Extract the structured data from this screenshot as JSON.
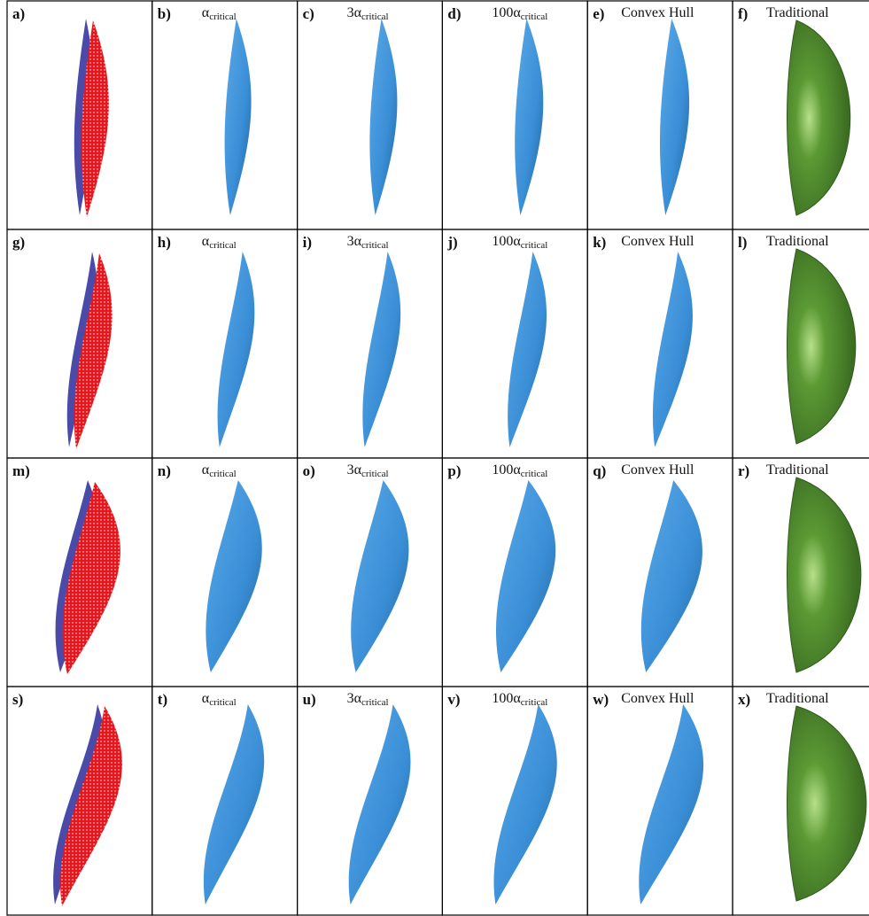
{
  "rows": [
    [
      {
        "label": "a)"
      },
      {
        "label": "b)",
        "title": {
          "main": "α",
          "sub": "critical"
        }
      },
      {
        "label": "c)",
        "title": {
          "main": "3α",
          "sub": "critical"
        }
      },
      {
        "label": "d)",
        "title": {
          "main": "100α",
          "sub": "critical"
        }
      },
      {
        "label": "e)",
        "title": {
          "main": "Convex Hull"
        }
      },
      {
        "label": "f)",
        "title": {
          "main": "Traditional"
        }
      }
    ],
    [
      {
        "label": "g)"
      },
      {
        "label": "h)",
        "title": {
          "main": "α",
          "sub": "critical"
        }
      },
      {
        "label": "i)",
        "title": {
          "main": "3α",
          "sub": "critical"
        }
      },
      {
        "label": "j)",
        "title": {
          "main": "100α",
          "sub": "critical"
        }
      },
      {
        "label": "k)",
        "title": {
          "main": "Convex Hull"
        }
      },
      {
        "label": "l)",
        "title": {
          "main": "Traditional"
        }
      }
    ],
    [
      {
        "label": "m)"
      },
      {
        "label": "n)",
        "title": {
          "main": "α",
          "sub": "critical"
        }
      },
      {
        "label": "o)",
        "title": {
          "main": "3α",
          "sub": "critical"
        }
      },
      {
        "label": "p)",
        "title": {
          "main": "100α",
          "sub": "critical"
        }
      },
      {
        "label": "q)",
        "title": {
          "main": "Convex Hull"
        }
      },
      {
        "label": "r)",
        "title": {
          "main": "Traditional"
        }
      }
    ],
    [
      {
        "label": "s)"
      },
      {
        "label": "t)",
        "title": {
          "main": "α",
          "sub": "critical"
        }
      },
      {
        "label": "u)",
        "title": {
          "main": "3α",
          "sub": "critical"
        }
      },
      {
        "label": "v)",
        "title": {
          "main": "100α",
          "sub": "critical"
        }
      },
      {
        "label": "w)",
        "title": {
          "main": "Convex Hull"
        }
      },
      {
        "label": "x)",
        "title": {
          "main": "Traditional"
        }
      }
    ]
  ]
}
